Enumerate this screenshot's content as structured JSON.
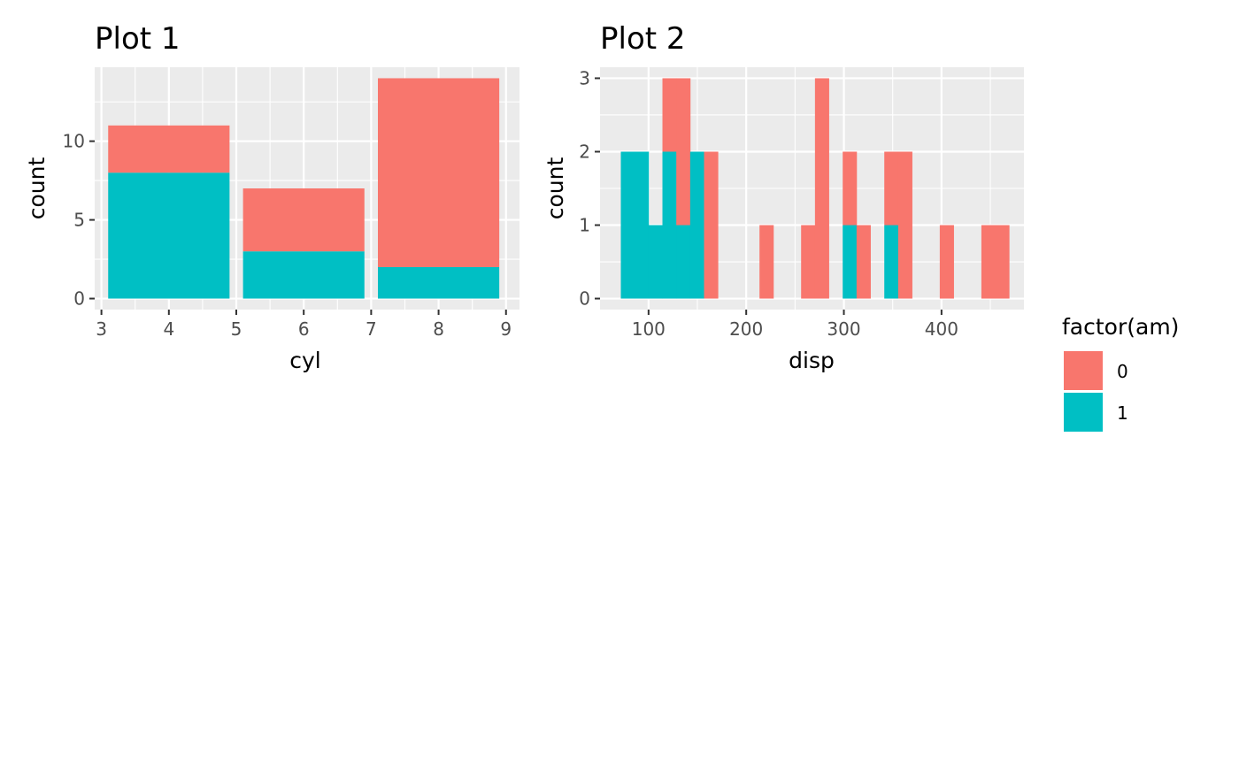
{
  "colors": {
    "panel_bg": "#EBEBEB",
    "grid": "#FFFFFF",
    "tick": "#333333",
    "am_0": "#F8766D",
    "am_1": "#00BFC4"
  },
  "legend": {
    "title": "factor(am)",
    "items": [
      {
        "label": "0",
        "color": "#F8766D"
      },
      {
        "label": "1",
        "color": "#00BFC4"
      }
    ]
  },
  "chart_data": [
    {
      "type": "bar",
      "stacked": true,
      "title": "Plot 1",
      "xlabel": "cyl",
      "ylabel": "count",
      "xlim": [
        2.9,
        9.2
      ],
      "ylim": [
        -0.7,
        14.7
      ],
      "x_ticks": [
        3,
        4,
        5,
        6,
        7,
        8,
        9
      ],
      "y_ticks": [
        0,
        5,
        10
      ],
      "bar_width": 1.8,
      "categories": [
        4,
        6,
        8
      ],
      "series": [
        {
          "name": "1",
          "color": "#00BFC4",
          "values": [
            8,
            3,
            2
          ]
        },
        {
          "name": "0",
          "color": "#F8766D",
          "values": [
            3,
            4,
            12
          ]
        }
      ]
    },
    {
      "type": "histogram",
      "stacked": true,
      "title": "Plot 2",
      "xlabel": "disp",
      "ylabel": "count",
      "xlim": [
        50.3,
        484.4
      ],
      "ylim": [
        -0.15,
        3.15
      ],
      "x_ticks": [
        100,
        200,
        300,
        400
      ],
      "y_ticks": [
        0,
        1,
        2,
        3
      ],
      "bin_width": 14.2,
      "bin_centers": [
        78.7,
        92.9,
        107.1,
        121.3,
        135.5,
        149.7,
        163.9,
        220.7,
        263.3,
        277.5,
        305.9,
        320.1,
        348.5,
        362.7,
        405.3,
        447.9,
        462.1
      ],
      "series": [
        {
          "name": "1",
          "color": "#00BFC4",
          "values": [
            2,
            2,
            1,
            2,
            1,
            2,
            0,
            0,
            0,
            0,
            1,
            0,
            1,
            0,
            0,
            0,
            0
          ]
        },
        {
          "name": "0",
          "color": "#F8766D",
          "values": [
            0,
            0,
            0,
            1,
            2,
            0,
            2,
            1,
            1,
            3,
            1,
            1,
            1,
            2,
            1,
            1,
            1
          ]
        }
      ]
    }
  ]
}
